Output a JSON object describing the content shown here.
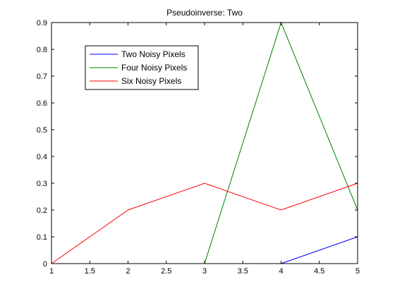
{
  "chart_data": {
    "type": "line",
    "title": "Pseudoinverse: Two",
    "xlabel": "",
    "ylabel": "",
    "xlim": [
      1,
      5
    ],
    "ylim": [
      0,
      0.9
    ],
    "xticks": [
      1,
      1.5,
      2,
      2.5,
      3,
      3.5,
      4,
      4.5,
      5
    ],
    "xtick_labels": [
      "1",
      "1.5",
      "2",
      "2.5",
      "3",
      "3.5",
      "4",
      "4.5",
      "5"
    ],
    "yticks": [
      0,
      0.1,
      0.2,
      0.3,
      0.4,
      0.5,
      0.6,
      0.7,
      0.8,
      0.9
    ],
    "ytick_labels": [
      "0",
      "0.1",
      "0.2",
      "0.3",
      "0.4",
      "0.5",
      "0.6",
      "0.7",
      "0.8",
      "0.9"
    ],
    "grid": false,
    "legend_position": "top-left",
    "series": [
      {
        "name": "Two Noisy Pixels",
        "color": "#0000ff",
        "x": [
          4,
          5
        ],
        "y": [
          0,
          0.1
        ]
      },
      {
        "name": "Four Noisy Pixels",
        "color": "#008000",
        "x": [
          3,
          4,
          5
        ],
        "y": [
          0,
          0.9,
          0.2
        ]
      },
      {
        "name": "Six Noisy Pixels",
        "color": "#ff0000",
        "x": [
          1,
          2,
          3,
          4,
          5
        ],
        "y": [
          0,
          0.2,
          0.3,
          0.2,
          0.3
        ]
      }
    ]
  }
}
